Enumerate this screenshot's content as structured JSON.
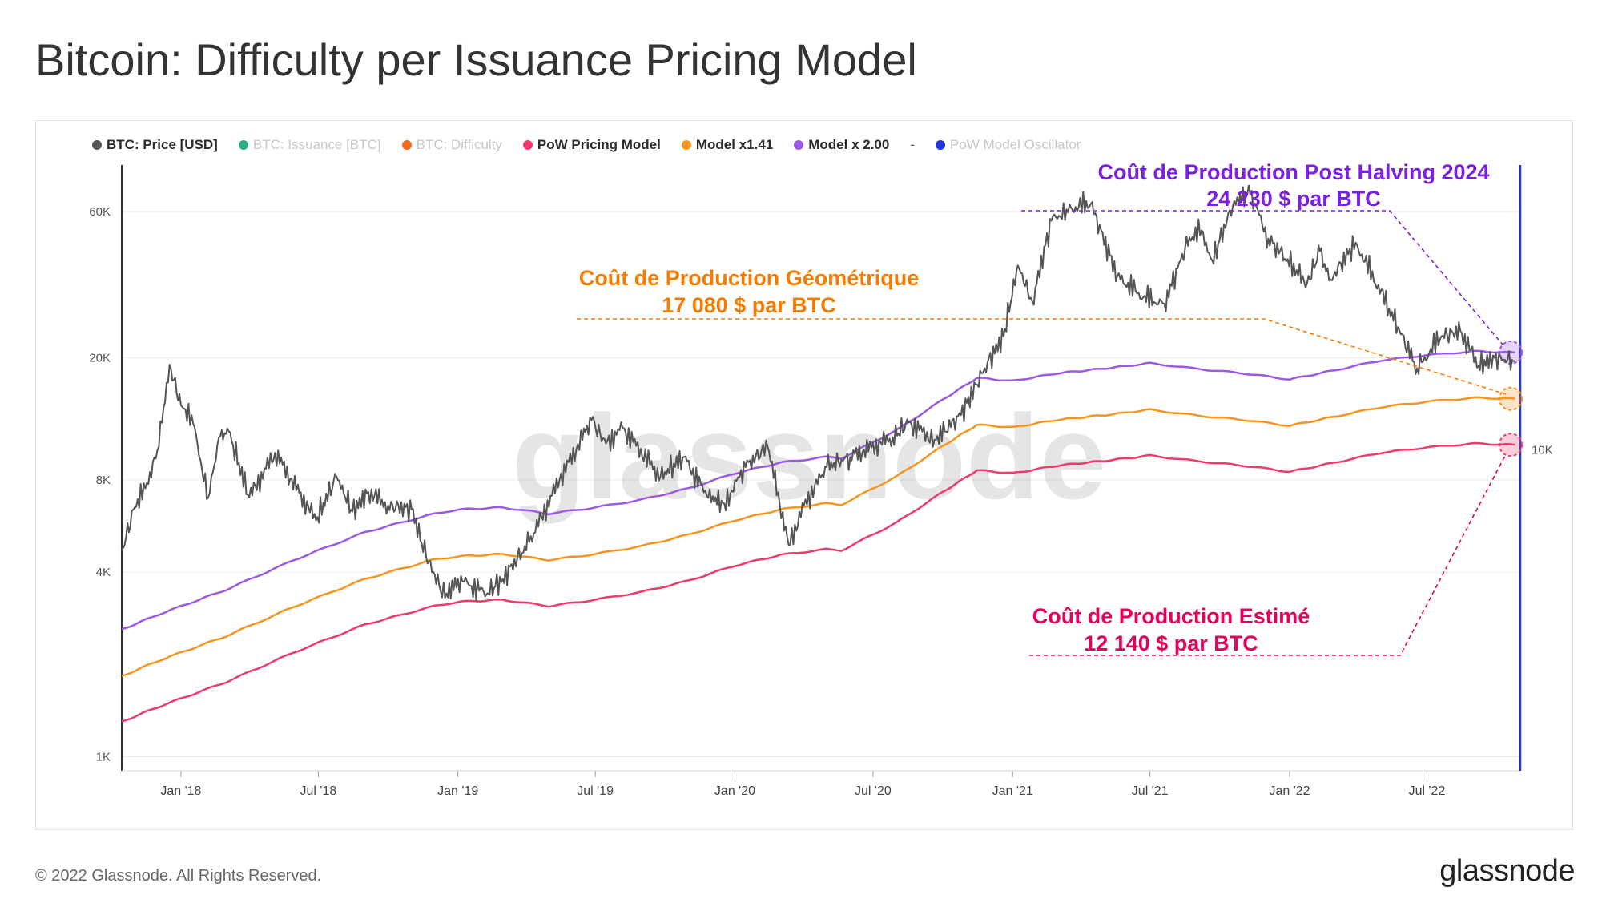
{
  "title": "Bitcoin: Difficulty per Issuance Pricing Model",
  "footer": {
    "copyright": "© 2022 Glassnode. All Rights Reserved.",
    "brand": "glassnode"
  },
  "watermark": "glassnode",
  "legend": [
    {
      "label": "BTC: Price [USD]",
      "color": "#555555",
      "dim": false
    },
    {
      "label": "BTC: Issuance [BTC]",
      "color": "#2eae7d",
      "dim": true
    },
    {
      "label": "BTC: Difficulty",
      "color": "#f26b1d",
      "dim": true
    },
    {
      "label": "PoW Pricing Model",
      "color": "#ef3a6b",
      "dim": false
    },
    {
      "label": "Model x1.41",
      "color": "#f7941d",
      "dim": false
    },
    {
      "label": "Model x 2.00",
      "color": "#9b59e6",
      "dim": false
    },
    {
      "label": "-",
      "color": "",
      "dim": false,
      "separator": true
    },
    {
      "label": "PoW Model Oscillator",
      "color": "#2437d6",
      "dim": true
    }
  ],
  "annotations": {
    "halving": {
      "line1": "Coût de Production Post Halving 2024",
      "line2": "24 230 $ par BTC",
      "color": "#7b1fe0"
    },
    "geometric": {
      "line1": "Coût de Production Géométrique",
      "line2": "17 080 $ par BTC",
      "color": "#f57c00"
    },
    "estimated": {
      "line1": "Coût de Production Estimé",
      "line2": "12 140 $ par BTC",
      "color": "#e6005c"
    }
  },
  "chart_data": {
    "type": "line",
    "yscale": "log",
    "ylim": [
      900,
      85000
    ],
    "xlim": [
      "2017-10-15",
      "2022-11-01"
    ],
    "y_ticks": [
      {
        "value": 1000,
        "label": "1K"
      },
      {
        "value": 4000,
        "label": "4K"
      },
      {
        "value": 8000,
        "label": "8K"
      },
      {
        "value": 20000,
        "label": "20K"
      },
      {
        "value": 60000,
        "label": "60K"
      }
    ],
    "right_ticks": [
      {
        "value": 10000,
        "label": "10K"
      }
    ],
    "x_ticks": [
      {
        "date": "2018-01-01",
        "label": "Jan '18"
      },
      {
        "date": "2018-07-01",
        "label": "Jul '18"
      },
      {
        "date": "2019-01-01",
        "label": "Jan '19"
      },
      {
        "date": "2019-07-01",
        "label": "Jul '19"
      },
      {
        "date": "2020-01-01",
        "label": "Jan '20"
      },
      {
        "date": "2020-07-01",
        "label": "Jul '20"
      },
      {
        "date": "2021-01-01",
        "label": "Jan '21"
      },
      {
        "date": "2021-07-01",
        "label": "Jul '21"
      },
      {
        "date": "2022-01-01",
        "label": "Jan '22"
      },
      {
        "date": "2022-07-01",
        "label": "Jul '22"
      }
    ],
    "series": [
      {
        "name": "PoW Pricing Model",
        "color": "#ef3a6b",
        "width": 2.5,
        "points": [
          [
            "2017-10-15",
            1300
          ],
          [
            "2017-12-01",
            1450
          ],
          [
            "2018-03-01",
            1750
          ],
          [
            "2018-06-01",
            2200
          ],
          [
            "2018-09-01",
            2700
          ],
          [
            "2018-12-01",
            3100
          ],
          [
            "2019-01-01",
            3200
          ],
          [
            "2019-03-01",
            3250
          ],
          [
            "2019-05-01",
            3100
          ],
          [
            "2019-07-01",
            3250
          ],
          [
            "2019-09-01",
            3450
          ],
          [
            "2019-11-01",
            3750
          ],
          [
            "2020-01-01",
            4200
          ],
          [
            "2020-03-01",
            4550
          ],
          [
            "2020-05-01",
            4750
          ],
          [
            "2020-05-20",
            4700
          ],
          [
            "2020-08-01",
            5800
          ],
          [
            "2020-10-01",
            7300
          ],
          [
            "2020-11-15",
            8600
          ],
          [
            "2021-01-01",
            8400
          ],
          [
            "2021-03-01",
            8900
          ],
          [
            "2021-05-15",
            9300
          ],
          [
            "2021-07-01",
            9600
          ],
          [
            "2021-09-01",
            9200
          ],
          [
            "2021-11-01",
            8900
          ],
          [
            "2022-01-01",
            8500
          ],
          [
            "2022-03-01",
            9100
          ],
          [
            "2022-05-01",
            9800
          ],
          [
            "2022-07-01",
            10200
          ],
          [
            "2022-09-01",
            10500
          ],
          [
            "2022-10-25",
            10400
          ]
        ]
      },
      {
        "name": "Model x1.41",
        "color": "#f7941d",
        "width": 2.5,
        "points": [
          [
            "2017-10-15",
            1830
          ],
          [
            "2017-12-01",
            2050
          ],
          [
            "2018-03-01",
            2470
          ],
          [
            "2018-06-01",
            3100
          ],
          [
            "2018-09-01",
            3800
          ],
          [
            "2018-12-01",
            4400
          ],
          [
            "2019-01-01",
            4500
          ],
          [
            "2019-03-01",
            4580
          ],
          [
            "2019-05-01",
            4380
          ],
          [
            "2019-07-01",
            4580
          ],
          [
            "2019-09-01",
            4870
          ],
          [
            "2019-11-01",
            5300
          ],
          [
            "2020-01-01",
            5900
          ],
          [
            "2020-03-01",
            6400
          ],
          [
            "2020-05-01",
            6700
          ],
          [
            "2020-05-20",
            6630
          ],
          [
            "2020-08-01",
            8200
          ],
          [
            "2020-10-01",
            10300
          ],
          [
            "2020-11-15",
            12100
          ],
          [
            "2021-01-01",
            11850
          ],
          [
            "2021-03-01",
            12550
          ],
          [
            "2021-05-15",
            13100
          ],
          [
            "2021-07-01",
            13550
          ],
          [
            "2021-09-01",
            12950
          ],
          [
            "2021-11-01",
            12550
          ],
          [
            "2022-01-01",
            12000
          ],
          [
            "2022-03-01",
            12850
          ],
          [
            "2022-05-01",
            13800
          ],
          [
            "2022-07-01",
            14380
          ],
          [
            "2022-09-01",
            14800
          ],
          [
            "2022-10-25",
            14700
          ]
        ]
      },
      {
        "name": "Model x 2.00",
        "color": "#9b59e6",
        "width": 2.5,
        "points": [
          [
            "2017-10-15",
            2600
          ],
          [
            "2017-12-01",
            2900
          ],
          [
            "2018-03-01",
            3500
          ],
          [
            "2018-06-01",
            4400
          ],
          [
            "2018-09-01",
            5400
          ],
          [
            "2018-12-01",
            6200
          ],
          [
            "2019-01-01",
            6400
          ],
          [
            "2019-03-01",
            6500
          ],
          [
            "2019-05-01",
            6200
          ],
          [
            "2019-07-01",
            6500
          ],
          [
            "2019-09-01",
            6900
          ],
          [
            "2019-11-01",
            7500
          ],
          [
            "2020-01-01",
            8400
          ],
          [
            "2020-03-01",
            9100
          ],
          [
            "2020-05-01",
            9500
          ],
          [
            "2020-05-20",
            9400
          ],
          [
            "2020-08-01",
            11600
          ],
          [
            "2020-10-01",
            14600
          ],
          [
            "2020-11-15",
            17200
          ],
          [
            "2021-01-01",
            16800
          ],
          [
            "2021-03-01",
            17800
          ],
          [
            "2021-05-15",
            18600
          ],
          [
            "2021-07-01",
            19200
          ],
          [
            "2021-09-01",
            18400
          ],
          [
            "2021-11-01",
            17800
          ],
          [
            "2022-01-01",
            17000
          ],
          [
            "2022-03-01",
            18200
          ],
          [
            "2022-05-01",
            19600
          ],
          [
            "2022-07-01",
            20400
          ],
          [
            "2022-09-01",
            21000
          ],
          [
            "2022-10-25",
            20800
          ]
        ]
      },
      {
        "name": "BTC: Price [USD]",
        "color": "#555555",
        "width": 2,
        "points": [
          [
            "2017-10-15",
            4700
          ],
          [
            "2017-11-01",
            6500
          ],
          [
            "2017-11-15",
            7500
          ],
          [
            "2017-12-01",
            10000
          ],
          [
            "2017-12-17",
            19000
          ],
          [
            "2018-01-01",
            14000
          ],
          [
            "2018-01-15",
            13000
          ],
          [
            "2018-02-06",
            7000
          ],
          [
            "2018-02-20",
            11000
          ],
          [
            "2018-03-05",
            11500
          ],
          [
            "2018-04-01",
            7000
          ],
          [
            "2018-05-05",
            9800
          ],
          [
            "2018-06-28",
            5900
          ],
          [
            "2018-07-25",
            8200
          ],
          [
            "2018-08-15",
            6300
          ],
          [
            "2018-09-05",
            7300
          ],
          [
            "2018-10-01",
            6600
          ],
          [
            "2018-11-01",
            6400
          ],
          [
            "2018-11-20",
            4500
          ],
          [
            "2018-12-15",
            3300
          ],
          [
            "2019-01-01",
            3800
          ],
          [
            "2019-02-08",
            3400
          ],
          [
            "2019-03-01",
            3800
          ],
          [
            "2019-04-05",
            5000
          ],
          [
            "2019-05-15",
            8000
          ],
          [
            "2019-06-26",
            12500
          ],
          [
            "2019-07-15",
            10500
          ],
          [
            "2019-08-06",
            11800
          ],
          [
            "2019-09-25",
            8200
          ],
          [
            "2019-10-26",
            9500
          ],
          [
            "2019-11-25",
            7100
          ],
          [
            "2019-12-18",
            6700
          ],
          [
            "2020-01-15",
            8800
          ],
          [
            "2020-02-13",
            10300
          ],
          [
            "2020-03-12",
            4900
          ],
          [
            "2020-04-01",
            6600
          ],
          [
            "2020-05-01",
            8800
          ],
          [
            "2020-06-01",
            9500
          ],
          [
            "2020-07-27",
            11000
          ],
          [
            "2020-08-17",
            12300
          ],
          [
            "2020-09-20",
            10800
          ],
          [
            "2020-10-25",
            13000
          ],
          [
            "2020-11-25",
            18500
          ],
          [
            "2020-12-20",
            23500
          ],
          [
            "2021-01-08",
            40000
          ],
          [
            "2021-01-27",
            30500
          ],
          [
            "2021-02-21",
            56000
          ],
          [
            "2021-03-13",
            61000
          ],
          [
            "2021-04-14",
            63500
          ],
          [
            "2021-05-19",
            37000
          ],
          [
            "2021-06-22",
            31500
          ],
          [
            "2021-07-20",
            30000
          ],
          [
            "2021-08-22",
            49500
          ],
          [
            "2021-09-07",
            52000
          ],
          [
            "2021-09-21",
            41500
          ],
          [
            "2021-10-20",
            65000
          ],
          [
            "2021-11-10",
            68500
          ],
          [
            "2021-12-04",
            49000
          ],
          [
            "2022-01-24",
            35000
          ],
          [
            "2022-02-10",
            44500
          ],
          [
            "2022-02-24",
            36000
          ],
          [
            "2022-03-29",
            47500
          ],
          [
            "2022-05-12",
            29000
          ],
          [
            "2022-06-18",
            18500
          ],
          [
            "2022-07-20",
            23500
          ],
          [
            "2022-08-14",
            24500
          ],
          [
            "2022-09-07",
            18800
          ],
          [
            "2022-09-28",
            20000
          ],
          [
            "2022-10-25",
            19500
          ]
        ]
      }
    ],
    "reference_lines": [
      {
        "name": "halving",
        "y": 24230,
        "color": "#7b1fe0"
      },
      {
        "name": "geometric",
        "y": 17080,
        "color": "#f57c00"
      },
      {
        "name": "estimated",
        "y": 12140,
        "color": "#e6005c"
      }
    ]
  }
}
